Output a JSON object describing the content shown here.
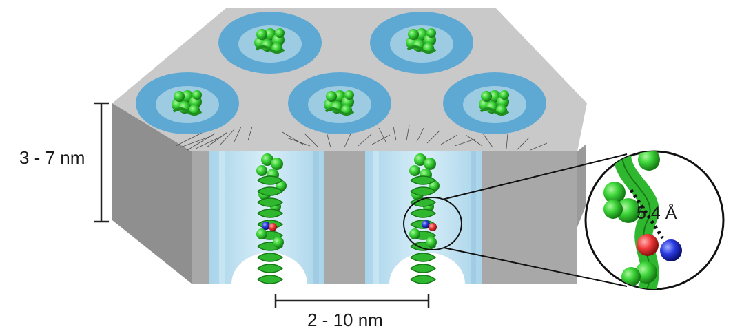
{
  "labels": {
    "pore_height": "3 - 7 nm",
    "pore_spacing": "2 - 10 nm",
    "residue_distance": "5.4 Å"
  },
  "colors": {
    "matrix_top": "#c8c8c8",
    "matrix_left_face": "#8a8a8a",
    "matrix_front_face": "#a9a9a9",
    "pore_ring": "#5ea9d3",
    "pore_channel": "#bfe0ef",
    "protein_helix": "#33cc33",
    "residue_oxygen": "#ff3333",
    "residue_nitrogen": "#2233dd"
  },
  "icons": [
    "protein-helix-icon",
    "dimension-bracket-icon",
    "magnifier-callout-icon"
  ]
}
